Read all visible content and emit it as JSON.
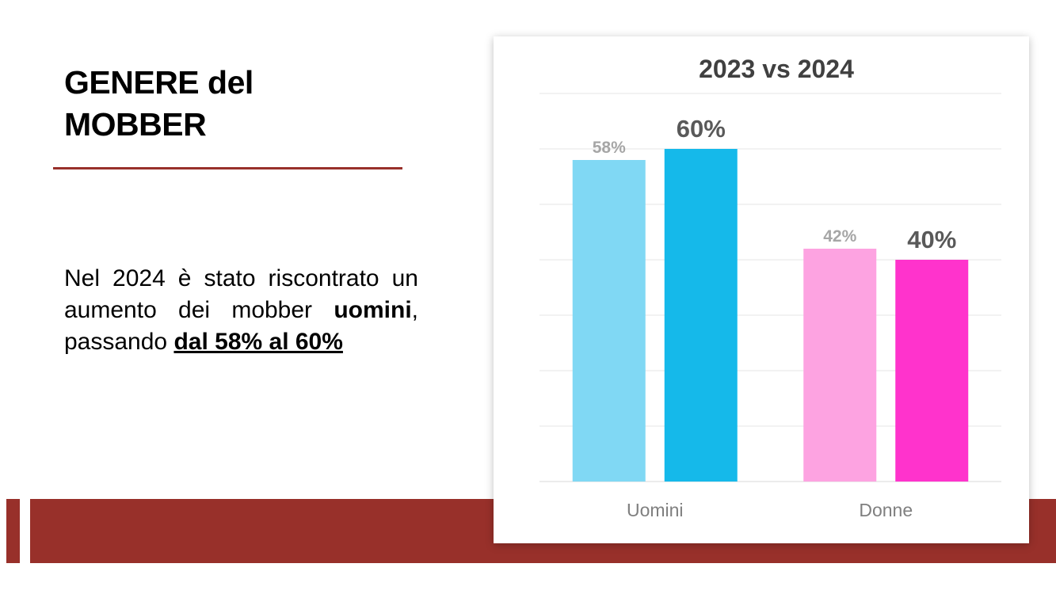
{
  "slide": {
    "title_line1": "GENERE del",
    "title_line2": "MOBBER",
    "body": {
      "part1": "Nel 2024 è stato riscontrato un aumento dei mobber ",
      "bold": "uomini",
      "part2": ", passando ",
      "underlined": "dal 58% al 60%"
    }
  },
  "colors": {
    "accent": "#98302a",
    "uomini_2023": "#80d8f4",
    "uomini_2024": "#15b9ea",
    "donne_2023": "#fda3e1",
    "donne_2024": "#ff33cc"
  },
  "chart_data": {
    "type": "bar",
    "title": "2023 vs 2024",
    "categories": [
      "Uomini",
      "Donne"
    ],
    "series": [
      {
        "values": [
          58,
          42
        ],
        "labels": [
          "58%",
          "42%"
        ]
      },
      {
        "values": [
          60,
          40
        ],
        "labels": [
          "60%",
          "40%"
        ]
      }
    ],
    "bar_colors": [
      [
        "#80d8f4",
        "#15b9ea"
      ],
      [
        "#fda3e1",
        "#ff33cc"
      ]
    ],
    "ylim": [
      0,
      70
    ],
    "grid": true,
    "legend": "none",
    "xlabel": "",
    "ylabel": ""
  }
}
